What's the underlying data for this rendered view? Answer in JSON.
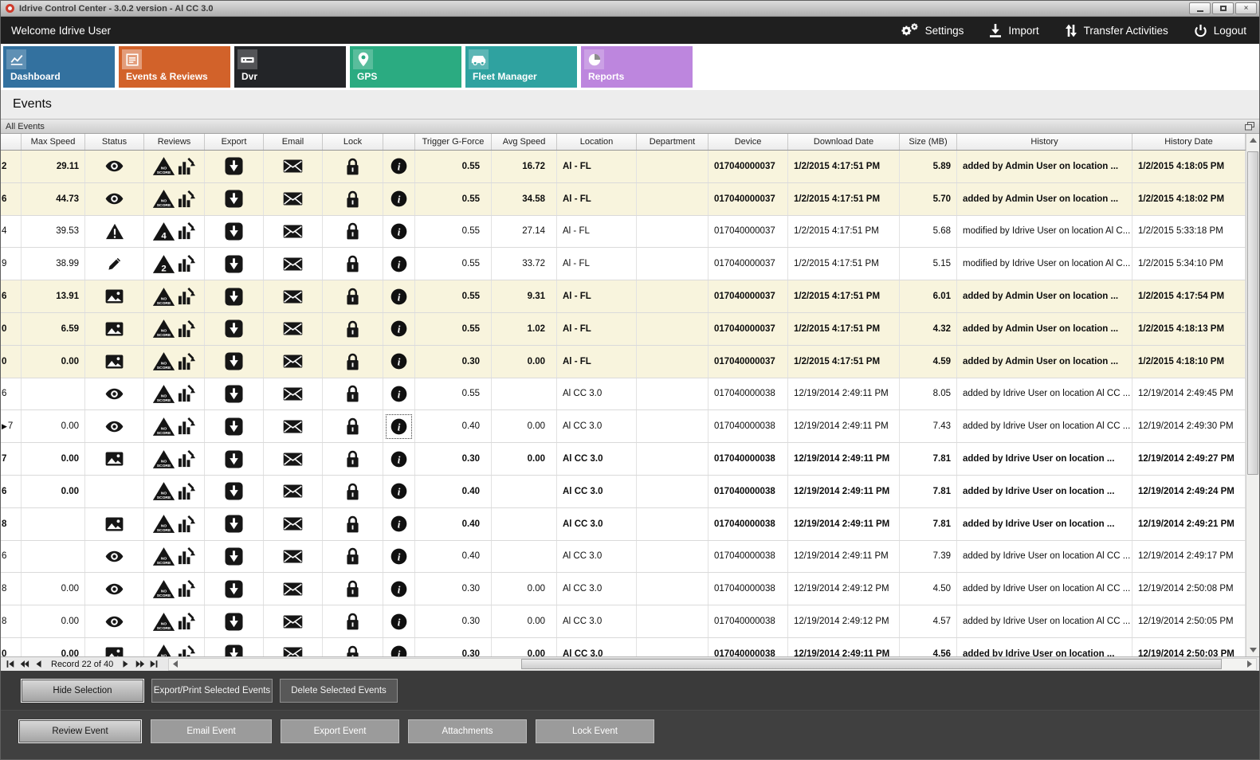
{
  "window": {
    "title": "Idrive Control Center - 3.0.2 version - Al CC 3.0"
  },
  "topbar": {
    "welcome": "Welcome Idrive User",
    "actions": [
      {
        "label": "Settings",
        "icon": "settings-gears-icon"
      },
      {
        "label": "Import",
        "icon": "import-icon"
      },
      {
        "label": "Transfer Activities",
        "icon": "transfer-arrows-icon"
      },
      {
        "label": "Logout",
        "icon": "logout-power-icon"
      }
    ]
  },
  "tabs": [
    {
      "label": "Dashboard",
      "color": "#33719f",
      "icon": "dashboard",
      "active": false
    },
    {
      "label": "Events & Reviews",
      "color": "#d2622a",
      "icon": "events",
      "active": true
    },
    {
      "label": "Dvr",
      "color": "#232528",
      "icon": "dvr",
      "active": false
    },
    {
      "label": "GPS",
      "color": "#2bab81",
      "icon": "gps",
      "active": false
    },
    {
      "label": "Fleet Manager",
      "color": "#2fa2a0",
      "icon": "fleet",
      "active": false
    },
    {
      "label": "Reports",
      "color": "#bd86de",
      "icon": "reports",
      "active": false
    }
  ],
  "page": {
    "heading": "Events",
    "panel_title": "All Events"
  },
  "grid": {
    "columns": [
      "",
      "Max Speed",
      "Status",
      "Reviews",
      "Export",
      "Email",
      "Lock",
      "",
      "Trigger G-Force",
      "Avg Speed",
      "Location",
      "Department",
      "Device",
      "Download Date",
      "Size (MB)",
      "History",
      "History Date"
    ],
    "rows": [
      {
        "id": "2",
        "max": "29.11",
        "status": "eye",
        "badge": "NO SCORE",
        "trigger": "0.55",
        "avg": "16.72",
        "loc": "Al - FL",
        "dept": "",
        "device": "017040000037",
        "dl": "1/2/2015 4:17:51 PM",
        "size": "5.89",
        "hist": "added by Admin User on location ...",
        "hdate": "1/2/2015 4:18:05 PM",
        "hl": true,
        "bold": true
      },
      {
        "id": "6",
        "max": "44.73",
        "status": "eye",
        "badge": "NO SCORE",
        "trigger": "0.55",
        "avg": "34.58",
        "loc": "Al - FL",
        "dept": "",
        "device": "017040000037",
        "dl": "1/2/2015 4:17:51 PM",
        "size": "5.70",
        "hist": "added by Admin User on location ...",
        "hdate": "1/2/2015 4:18:02 PM",
        "hl": true,
        "bold": true
      },
      {
        "id": "4",
        "max": "39.53",
        "status": "warning",
        "badge": "4",
        "trigger": "0.55",
        "avg": "27.14",
        "loc": "Al - FL",
        "dept": "",
        "device": "017040000037",
        "dl": "1/2/2015 4:17:51 PM",
        "size": "5.68",
        "hist": "modified by Idrive User on location Al C...",
        "hdate": "1/2/2015 5:33:18 PM",
        "hl": false,
        "bold": false
      },
      {
        "id": "9",
        "max": "38.99",
        "status": "pencil",
        "badge": "2",
        "trigger": "0.55",
        "avg": "33.72",
        "loc": "Al - FL",
        "dept": "",
        "device": "017040000037",
        "dl": "1/2/2015 4:17:51 PM",
        "size": "5.15",
        "hist": "modified by Idrive User on location Al C...",
        "hdate": "1/2/2015 5:34:10 PM",
        "hl": false,
        "bold": false
      },
      {
        "id": "6",
        "max": "13.91",
        "status": "image",
        "badge": "NO SCORE",
        "trigger": "0.55",
        "avg": "9.31",
        "loc": "Al - FL",
        "dept": "",
        "device": "017040000037",
        "dl": "1/2/2015 4:17:51 PM",
        "size": "6.01",
        "hist": "added by Admin User on location ...",
        "hdate": "1/2/2015 4:17:54 PM",
        "hl": true,
        "bold": true
      },
      {
        "id": "0",
        "max": "6.59",
        "status": "image",
        "badge": "NO SCORE",
        "trigger": "0.55",
        "avg": "1.02",
        "loc": "Al - FL",
        "dept": "",
        "device": "017040000037",
        "dl": "1/2/2015 4:17:51 PM",
        "size": "4.32",
        "hist": "added by Admin User on location ...",
        "hdate": "1/2/2015 4:18:13 PM",
        "hl": true,
        "bold": true
      },
      {
        "id": "0",
        "max": "0.00",
        "status": "image",
        "badge": "NO SCORE",
        "trigger": "0.30",
        "avg": "0.00",
        "loc": "Al - FL",
        "dept": "",
        "device": "017040000037",
        "dl": "1/2/2015 4:17:51 PM",
        "size": "4.59",
        "hist": "added by Admin User on location ...",
        "hdate": "1/2/2015 4:18:10 PM",
        "hl": true,
        "bold": true
      },
      {
        "id": "6",
        "max": "",
        "status": "eye",
        "badge": "NO SCORE",
        "trigger": "0.55",
        "avg": "",
        "loc": "Al CC 3.0",
        "dept": "",
        "device": "017040000038",
        "dl": "12/19/2014 2:49:11 PM",
        "size": "8.05",
        "hist": "added by Idrive User on location Al CC ...",
        "hdate": "12/19/2014 2:49:45 PM",
        "hl": false,
        "bold": false
      },
      {
        "id": "7",
        "marker": true,
        "info_selected": true,
        "max": "0.00",
        "status": "eye",
        "badge": "NO SCORE",
        "trigger": "0.40",
        "avg": "0.00",
        "loc": "Al CC 3.0",
        "dept": "",
        "device": "017040000038",
        "dl": "12/19/2014 2:49:11 PM",
        "size": "7.43",
        "hist": "added by Idrive User on location Al CC ...",
        "hdate": "12/19/2014 2:49:30 PM",
        "hl": false,
        "bold": false
      },
      {
        "id": "7",
        "max": "0.00",
        "status": "image",
        "badge": "NO SCORE",
        "trigger": "0.30",
        "avg": "0.00",
        "loc": "Al CC 3.0",
        "dept": "",
        "device": "017040000038",
        "dl": "12/19/2014 2:49:11 PM",
        "size": "7.81",
        "hist": "added by Idrive User on location ...",
        "hdate": "12/19/2014 2:49:27 PM",
        "hl": false,
        "bold": true
      },
      {
        "id": "6",
        "max": "0.00",
        "status": "",
        "badge": "NO SCORE",
        "trigger": "0.40",
        "avg": "",
        "loc": "Al CC 3.0",
        "dept": "",
        "device": "017040000038",
        "dl": "12/19/2014 2:49:11 PM",
        "size": "7.81",
        "hist": "added by Idrive User on location ...",
        "hdate": "12/19/2014 2:49:24 PM",
        "hl": false,
        "bold": true
      },
      {
        "id": "8",
        "max": "",
        "status": "image",
        "badge": "NO SCORE",
        "trigger": "0.40",
        "avg": "",
        "loc": "Al CC 3.0",
        "dept": "",
        "device": "017040000038",
        "dl": "12/19/2014 2:49:11 PM",
        "size": "7.81",
        "hist": "added by Idrive User on location ...",
        "hdate": "12/19/2014 2:49:21 PM",
        "hl": false,
        "bold": true
      },
      {
        "id": "6",
        "max": "",
        "status": "eye",
        "badge": "NO SCORE",
        "trigger": "0.40",
        "avg": "",
        "loc": "Al CC 3.0",
        "dept": "",
        "device": "017040000038",
        "dl": "12/19/2014 2:49:11 PM",
        "size": "7.39",
        "hist": "added by Idrive User on location Al CC ...",
        "hdate": "12/19/2014 2:49:17 PM",
        "hl": false,
        "bold": false
      },
      {
        "id": "8",
        "max": "0.00",
        "status": "eye",
        "badge": "NO SCORE",
        "trigger": "0.30",
        "avg": "0.00",
        "loc": "Al CC 3.0",
        "dept": "",
        "device": "017040000038",
        "dl": "12/19/2014 2:49:12 PM",
        "size": "4.50",
        "hist": "added by Idrive User on location Al CC ...",
        "hdate": "12/19/2014 2:50:08 PM",
        "hl": false,
        "bold": false
      },
      {
        "id": "8",
        "max": "0.00",
        "status": "eye",
        "badge": "NO SCORE",
        "trigger": "0.30",
        "avg": "0.00",
        "loc": "Al CC 3.0",
        "dept": "",
        "device": "017040000038",
        "dl": "12/19/2014 2:49:12 PM",
        "size": "4.57",
        "hist": "added by Idrive User on location Al CC ...",
        "hdate": "12/19/2014 2:50:05 PM",
        "hl": false,
        "bold": false
      },
      {
        "id": "0",
        "max": "0.00",
        "status": "image",
        "badge": "NO SCORE",
        "trigger": "0.30",
        "avg": "0.00",
        "loc": "Al CC 3.0",
        "dept": "",
        "device": "017040000038",
        "dl": "12/19/2014 2:49:11 PM",
        "size": "4.56",
        "hist": "added by Idrive User on location ...",
        "hdate": "12/19/2014 2:50:03 PM",
        "hl": false,
        "bold": true
      }
    ]
  },
  "navigator": {
    "record_label": "Record 22 of 40"
  },
  "action_buttons": {
    "row1": [
      "Hide Selection",
      "Export/Print Selected Events",
      "Delete Selected  Events"
    ],
    "row2": [
      "Review Event",
      "Email Event",
      "Export Event",
      "Attachments",
      "Lock Event"
    ]
  }
}
